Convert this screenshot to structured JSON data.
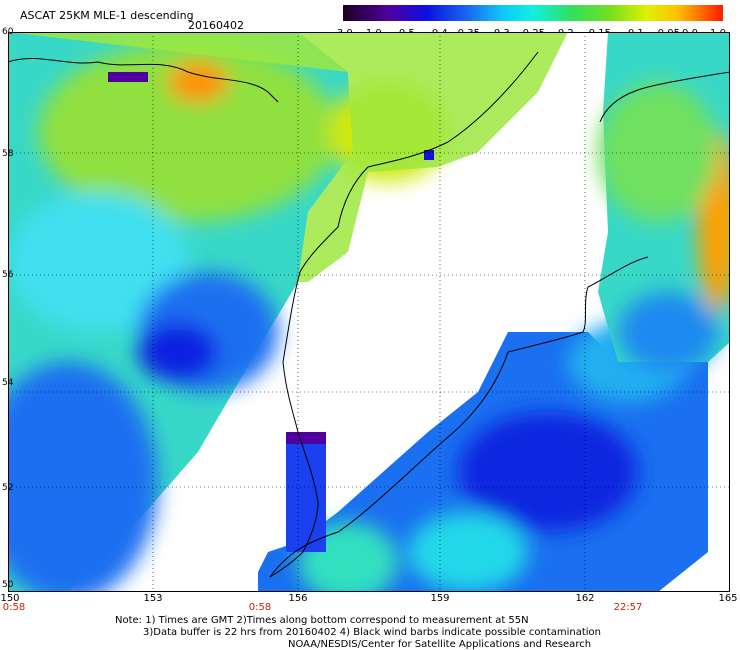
{
  "header": {
    "title": "ASCAT 25KM MLE-1 descending",
    "date": "20160402"
  },
  "colorbar": {
    "labels": [
      "-3.0",
      "-1.0",
      "-0.5",
      "-0.4",
      "-0.35",
      "-0.3",
      "-0.25",
      "-0.2",
      "-0.15",
      "-0.1",
      "-0.05",
      "0.0",
      "1.0"
    ],
    "colors": [
      "#2a0030",
      "#5a00a0",
      "#1010d8",
      "#1a55f0",
      "#1aa0f8",
      "#10e0f0",
      "#30f0b0",
      "#40e040",
      "#a0e820",
      "#e8e800",
      "#ffa000",
      "#ff5000",
      "#ff2000"
    ]
  },
  "map": {
    "lat_labels": [
      "60",
      "58",
      "56",
      "54",
      "52",
      "50"
    ],
    "lon_labels": [
      "150",
      "153",
      "156",
      "159",
      "162",
      "165"
    ],
    "time_labels": [
      "0:58",
      "0:58",
      "22:57"
    ]
  },
  "notes": {
    "line1": "Note: 1) Times are GMT 2)Times along bottom correspond to measurement at 55N",
    "line2": "3)Data buffer is 22 hrs from 20160402 4) Black wind barbs indicate possible contamination",
    "line3": "NOAA/NESDIS/Center for Satellite Applications and Research"
  }
}
